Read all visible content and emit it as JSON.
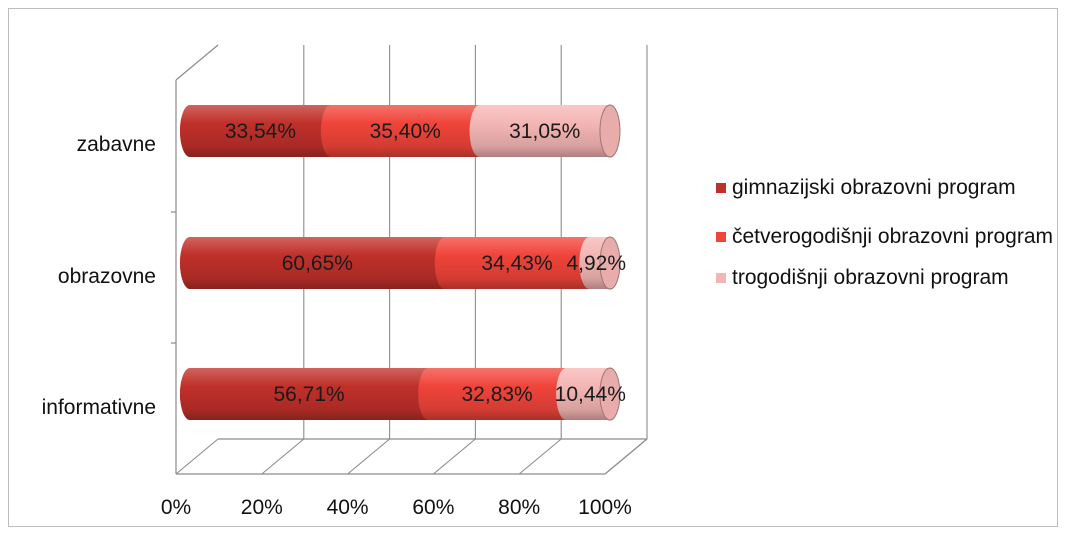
{
  "chart_data": {
    "type": "bar",
    "orientation": "horizontal",
    "stacked": "percent",
    "style": "3d-cylinder",
    "categories": [
      "zabavne",
      "obrazovne",
      "informativne"
    ],
    "series": [
      {
        "name": "gimnazijski obrazovni program",
        "color": "#c0302a",
        "values": [
          33.54,
          60.65,
          56.71
        ],
        "labels": [
          "33,54%",
          "60,65%",
          "56,71%"
        ]
      },
      {
        "name": "četverogodišnji obrazovni program",
        "color": "#f0443a",
        "values": [
          35.4,
          34.43,
          32.83
        ],
        "labels": [
          "35,40%",
          "34,43%",
          "32,83%"
        ]
      },
      {
        "name": "trogodišnji obrazovni program",
        "color": "#f4b6b4",
        "values": [
          31.05,
          4.92,
          10.44
        ],
        "labels": [
          "31,05%",
          "4,92%",
          "10,44%"
        ]
      }
    ],
    "x_ticks": [
      "0%",
      "20%",
      "40%",
      "60%",
      "80%",
      "100%"
    ],
    "xlim": [
      0,
      100
    ],
    "grid": true,
    "legend_position": "right"
  }
}
